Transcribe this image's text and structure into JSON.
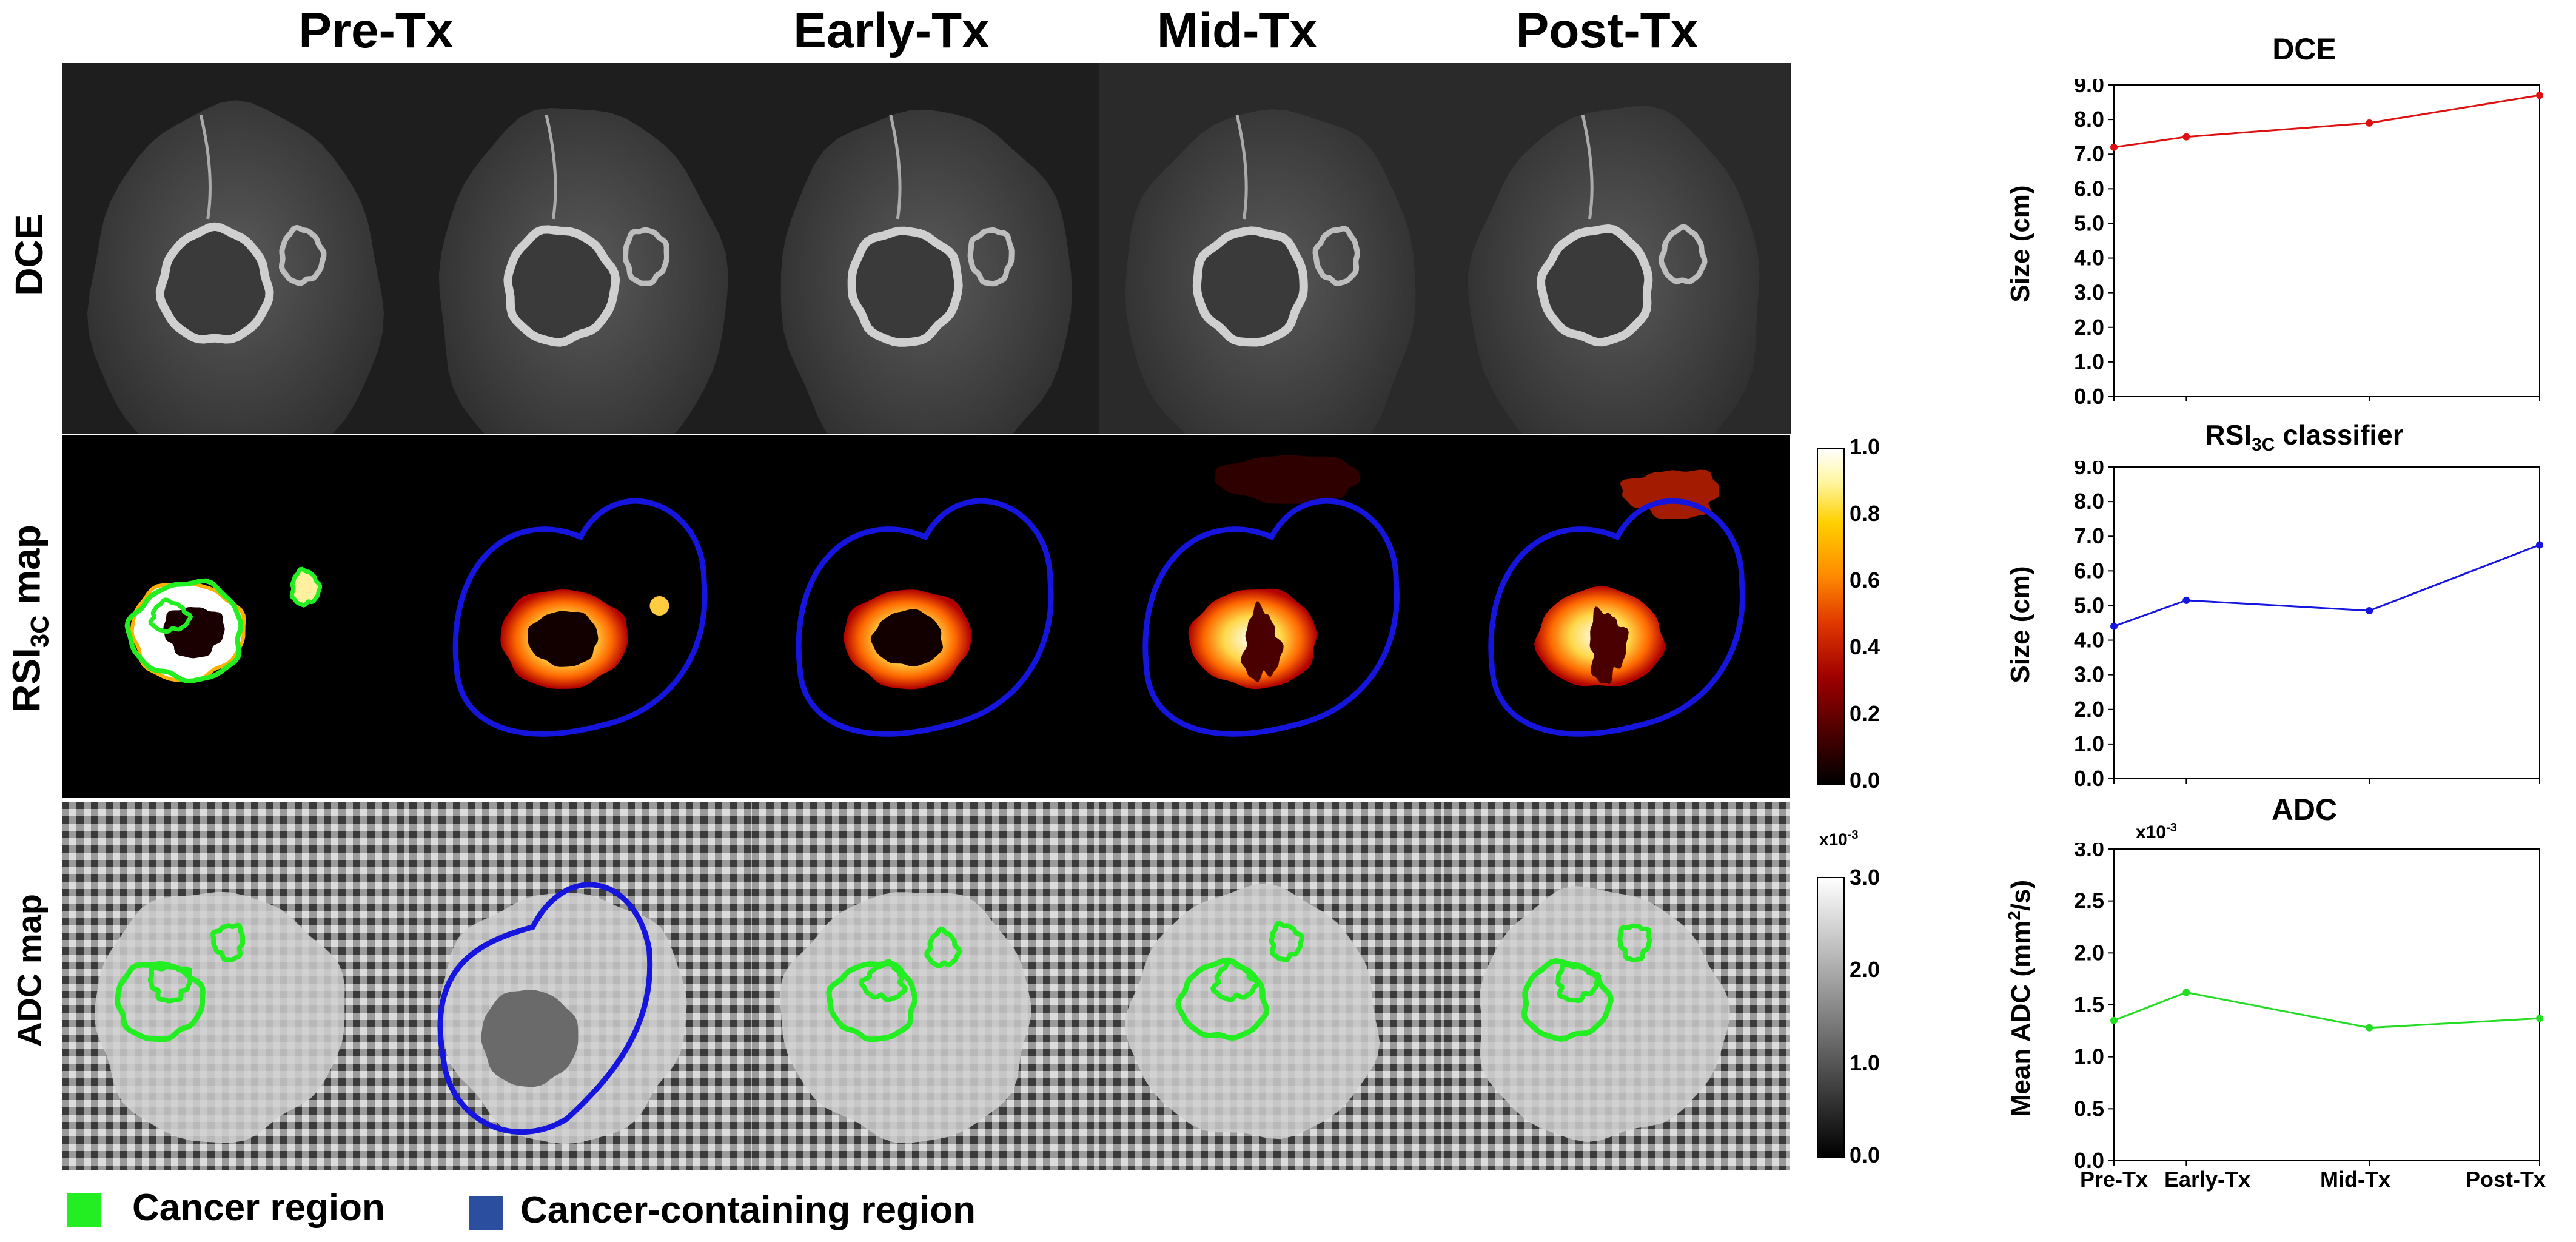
{
  "column_headers": [
    "Pre-Tx",
    "Early-Tx",
    "Mid-Tx",
    "Post-Tx"
  ],
  "row_labels": {
    "dce": "DCE",
    "rsi_base": "RSI",
    "rsi_sub": "3C",
    "rsi_suffix": " map",
    "adc": "ADC map"
  },
  "colorbars": {
    "rsi": {
      "ticks": [
        "1.0",
        "0.8",
        "0.6",
        "0.4",
        "0.2",
        "0.0"
      ]
    },
    "adc": {
      "ticks": [
        "3.0",
        "2.0",
        "1.0",
        "0.0"
      ],
      "multiplier_base": "x10",
      "multiplier_exp": "-3"
    }
  },
  "legend": {
    "cancer": {
      "label": "Cancer region",
      "color": "#22ee22"
    },
    "containing": {
      "label": "Cancer-containing region",
      "color": "#2b4f9e"
    }
  },
  "colors": {
    "green_contour": "#22ee22",
    "blue_contour": "#1515dd"
  },
  "chart_data": [
    {
      "type": "line",
      "title": "DCE",
      "ylabel": "Size (cm)",
      "categories": [
        "Pre-Tx",
        "Early-Tx",
        "Mid-Tx",
        "Post-Tx"
      ],
      "x": [
        0,
        0.17,
        0.6,
        1
      ],
      "values": [
        7.2,
        7.5,
        7.9,
        8.7
      ],
      "ylim": [
        0,
        9
      ],
      "yticks": [
        "0.0",
        "1.0",
        "2.0",
        "3.0",
        "4.0",
        "5.0",
        "6.0",
        "7.0",
        "8.0",
        "9.0"
      ],
      "color": "#dd1111"
    },
    {
      "type": "line",
      "title_base": "RSI",
      "title_sub": "3C",
      "title_suffix": " classifier",
      "ylabel": "Size (cm)",
      "categories": [
        "Pre-Tx",
        "Early-Tx",
        "Mid-Tx",
        "Post-Tx"
      ],
      "x": [
        0,
        0.17,
        0.6,
        1
      ],
      "values": [
        4.4,
        5.15,
        4.85,
        6.75
      ],
      "ylim": [
        0,
        9
      ],
      "yticks": [
        "0.0",
        "1.0",
        "2.0",
        "3.0",
        "4.0",
        "5.0",
        "6.0",
        "7.0",
        "8.0",
        "9.0"
      ],
      "color": "#1515dd"
    },
    {
      "type": "line",
      "title": "ADC",
      "ylabel_base": "Mean ADC (mm",
      "ylabel_sup": "2",
      "ylabel_suffix": "/s)",
      "multiplier_base": "x10",
      "multiplier_exp": "-3",
      "categories": [
        "Pre-Tx",
        "Early-Tx",
        "Mid-Tx",
        "Post-Tx"
      ],
      "x": [
        0,
        0.17,
        0.6,
        1
      ],
      "values": [
        1.35,
        1.62,
        1.28,
        1.37
      ],
      "ylim": [
        0,
        3
      ],
      "yticks": [
        "0.0",
        "0.5",
        "1.0",
        "1.5",
        "2.0",
        "2.5",
        "3.0"
      ],
      "color": "#22dd22"
    }
  ]
}
